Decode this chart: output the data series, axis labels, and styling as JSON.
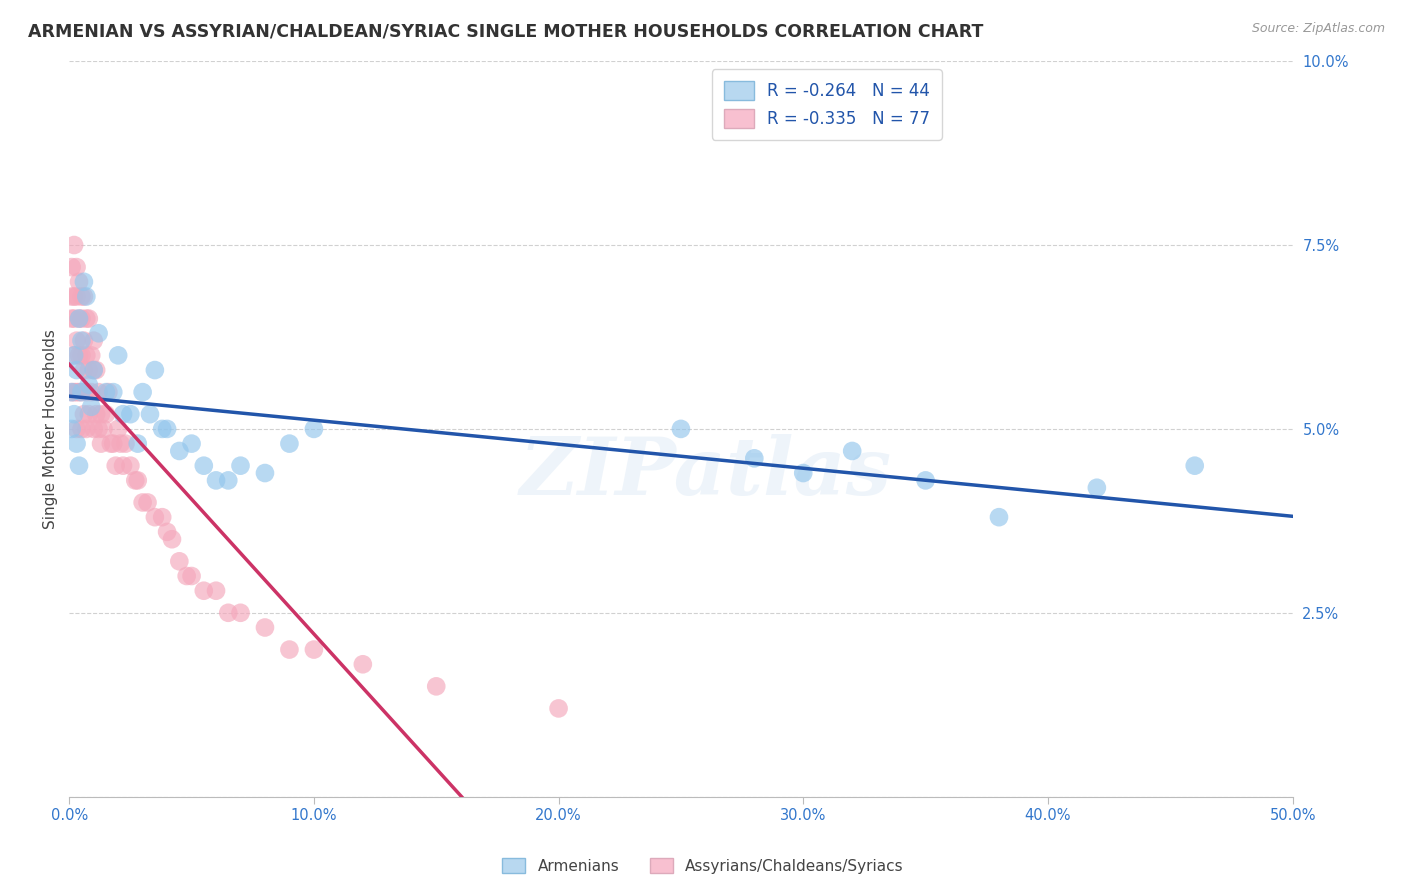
{
  "title": "ARMENIAN VS ASSYRIAN/CHALDEAN/SYRIAC SINGLE MOTHER HOUSEHOLDS CORRELATION CHART",
  "source": "Source: ZipAtlas.com",
  "ylabel_label": "Single Mother Households",
  "x_min": 0.0,
  "x_max": 0.5,
  "y_min": 0.0,
  "y_max": 0.1,
  "x_ticks": [
    0.0,
    0.1,
    0.2,
    0.3,
    0.4,
    0.5
  ],
  "x_tick_labels": [
    "0.0%",
    "10.0%",
    "20.0%",
    "30.0%",
    "40.0%",
    "50.0%"
  ],
  "y_ticks": [
    0.0,
    0.025,
    0.05,
    0.075,
    0.1
  ],
  "y_tick_labels": [
    "",
    "2.5%",
    "5.0%",
    "7.5%",
    "10.0%"
  ],
  "armenian_R": -0.264,
  "armenian_N": 44,
  "assyrian_R": -0.335,
  "assyrian_N": 77,
  "armenian_color": "#92C5EC",
  "assyrian_color": "#F4A7BB",
  "trendline_armenian_color": "#2255AA",
  "trendline_assyrian_color": "#CC3366",
  "watermark": "ZIPatlas",
  "legend_label_armenian": "Armenians",
  "legend_label_assyrian": "Assyrians/Chaldeans/Syriacs",
  "armenian_x": [
    0.001,
    0.001,
    0.002,
    0.002,
    0.003,
    0.003,
    0.004,
    0.004,
    0.005,
    0.005,
    0.006,
    0.007,
    0.008,
    0.009,
    0.01,
    0.012,
    0.015,
    0.018,
    0.02,
    0.022,
    0.025,
    0.028,
    0.03,
    0.033,
    0.035,
    0.038,
    0.04,
    0.045,
    0.05,
    0.055,
    0.06,
    0.065,
    0.07,
    0.08,
    0.09,
    0.1,
    0.25,
    0.28,
    0.3,
    0.32,
    0.35,
    0.38,
    0.42,
    0.46
  ],
  "armenian_y": [
    0.055,
    0.05,
    0.06,
    0.052,
    0.058,
    0.048,
    0.065,
    0.045,
    0.062,
    0.055,
    0.07,
    0.068,
    0.056,
    0.053,
    0.058,
    0.063,
    0.055,
    0.055,
    0.06,
    0.052,
    0.052,
    0.048,
    0.055,
    0.052,
    0.058,
    0.05,
    0.05,
    0.047,
    0.048,
    0.045,
    0.043,
    0.043,
    0.045,
    0.044,
    0.048,
    0.05,
    0.05,
    0.046,
    0.044,
    0.047,
    0.043,
    0.038,
    0.042,
    0.045
  ],
  "assyrian_x": [
    0.001,
    0.001,
    0.001,
    0.001,
    0.002,
    0.002,
    0.002,
    0.002,
    0.002,
    0.003,
    0.003,
    0.003,
    0.003,
    0.003,
    0.004,
    0.004,
    0.004,
    0.004,
    0.005,
    0.005,
    0.005,
    0.005,
    0.005,
    0.006,
    0.006,
    0.006,
    0.006,
    0.007,
    0.007,
    0.007,
    0.007,
    0.008,
    0.008,
    0.008,
    0.009,
    0.009,
    0.01,
    0.01,
    0.01,
    0.011,
    0.011,
    0.012,
    0.012,
    0.013,
    0.013,
    0.014,
    0.015,
    0.016,
    0.017,
    0.018,
    0.019,
    0.02,
    0.021,
    0.022,
    0.023,
    0.025,
    0.027,
    0.028,
    0.03,
    0.032,
    0.035,
    0.038,
    0.04,
    0.042,
    0.045,
    0.048,
    0.05,
    0.055,
    0.06,
    0.065,
    0.07,
    0.08,
    0.09,
    0.1,
    0.12,
    0.15,
    0.2
  ],
  "assyrian_y": [
    0.072,
    0.068,
    0.065,
    0.055,
    0.075,
    0.068,
    0.065,
    0.06,
    0.055,
    0.072,
    0.068,
    0.062,
    0.055,
    0.05,
    0.07,
    0.065,
    0.06,
    0.055,
    0.068,
    0.065,
    0.06,
    0.055,
    0.05,
    0.068,
    0.062,
    0.058,
    0.052,
    0.065,
    0.06,
    0.055,
    0.05,
    0.065,
    0.058,
    0.052,
    0.06,
    0.055,
    0.062,
    0.058,
    0.05,
    0.058,
    0.052,
    0.055,
    0.05,
    0.052,
    0.048,
    0.05,
    0.052,
    0.055,
    0.048,
    0.048,
    0.045,
    0.05,
    0.048,
    0.045,
    0.048,
    0.045,
    0.043,
    0.043,
    0.04,
    0.04,
    0.038,
    0.038,
    0.036,
    0.035,
    0.032,
    0.03,
    0.03,
    0.028,
    0.028,
    0.025,
    0.025,
    0.023,
    0.02,
    0.02,
    0.018,
    0.015,
    0.012
  ],
  "background_color": "#FFFFFF",
  "grid_color": "#CCCCCC"
}
